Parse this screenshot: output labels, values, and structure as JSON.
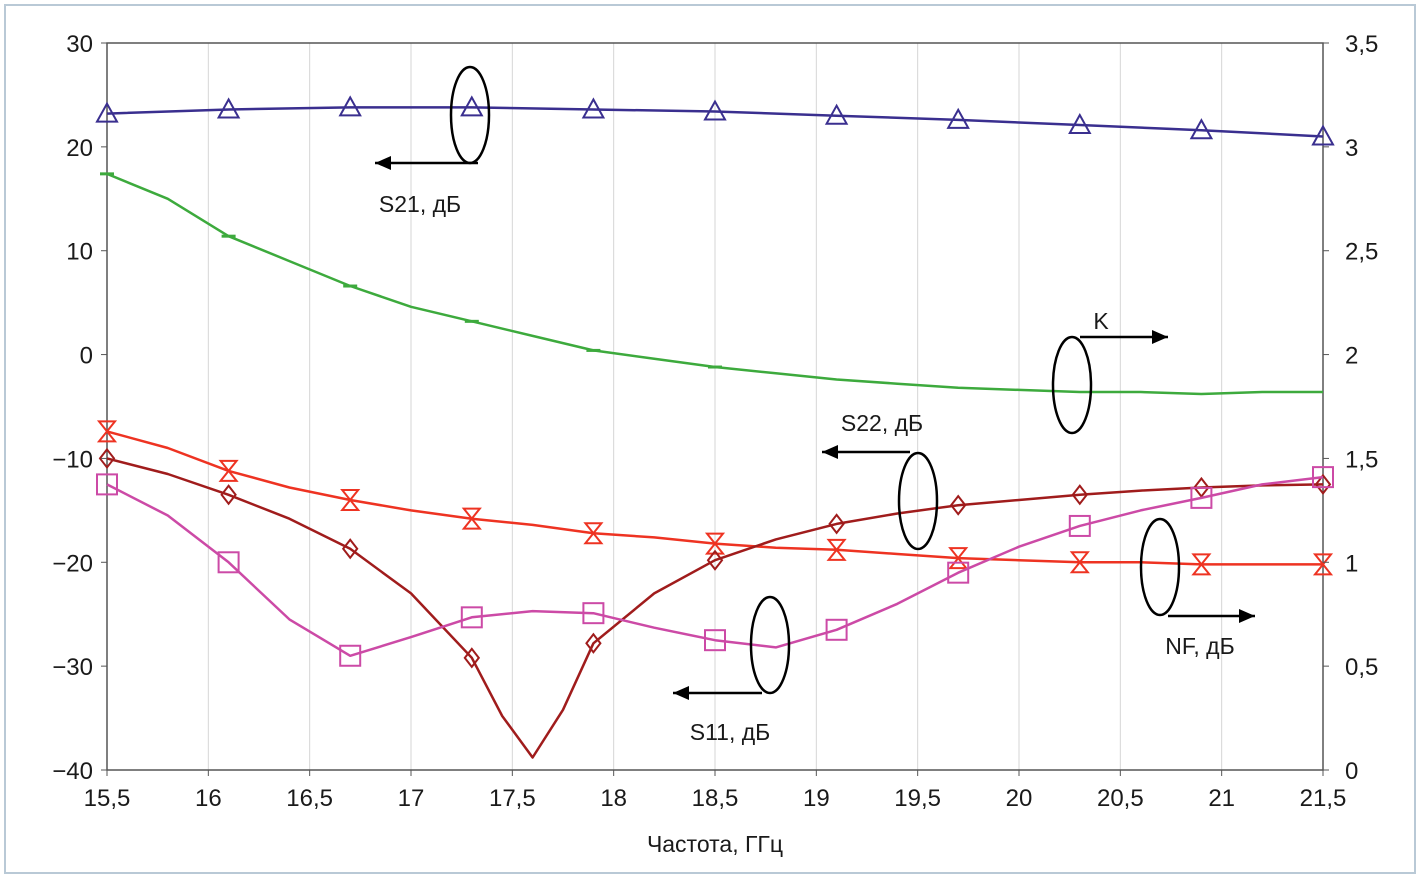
{
  "chart_data": {
    "type": "line",
    "xlabel": "Частота, ГГц",
    "x_ticks": [
      "15,5",
      "16",
      "16,5",
      "17",
      "17,5",
      "18",
      "18,5",
      "19",
      "19,5",
      "20",
      "20,5",
      "21",
      "21,5"
    ],
    "x_tick_values": [
      15.5,
      16,
      16.5,
      17,
      17.5,
      18,
      18.5,
      19,
      19.5,
      20,
      20.5,
      21,
      21.5
    ],
    "xlim": [
      15.5,
      21.5
    ],
    "y_left": {
      "ylim": [
        -40,
        30
      ],
      "ticks": [
        "30",
        "20",
        "10",
        "0",
        "−10",
        "−20",
        "−30",
        "−40"
      ],
      "tick_values": [
        30,
        20,
        10,
        0,
        -10,
        -20,
        -30,
        -40
      ]
    },
    "y_right": {
      "ylim": [
        0,
        3.5
      ],
      "ticks": [
        "3,5",
        "3",
        "2,5",
        "2",
        "1,5",
        "1",
        "0,5",
        "0"
      ],
      "tick_values": [
        3.5,
        3,
        2.5,
        2,
        1.5,
        1,
        0.5,
        0
      ]
    },
    "series": [
      {
        "name": "S21, дБ",
        "axis": "left",
        "color": "#3a2f8f",
        "marker": "triangle",
        "x": [
          15.5,
          16.1,
          16.7,
          17.3,
          17.9,
          18.5,
          19.1,
          19.7,
          20.3,
          20.9,
          21.5
        ],
        "y": [
          23.2,
          23.6,
          23.8,
          23.8,
          23.6,
          23.4,
          23.0,
          22.6,
          22.1,
          21.6,
          21.0
        ],
        "marker_x": [
          15.5,
          16.1,
          16.7,
          17.3,
          17.9,
          18.5,
          19.1,
          19.7,
          20.3,
          20.9,
          21.5
        ]
      },
      {
        "name": "K",
        "axis": "right",
        "color": "#3daa3d",
        "marker": "dash",
        "x": [
          15.5,
          15.8,
          16.1,
          16.4,
          16.7,
          17.0,
          17.3,
          17.6,
          17.9,
          18.2,
          18.5,
          18.8,
          19.1,
          19.4,
          19.7,
          20.0,
          20.3,
          20.6,
          20.9,
          21.2,
          21.5
        ],
        "y": [
          2.87,
          2.75,
          2.57,
          2.45,
          2.33,
          2.23,
          2.16,
          2.09,
          2.02,
          1.98,
          1.94,
          1.91,
          1.88,
          1.86,
          1.84,
          1.83,
          1.82,
          1.82,
          1.81,
          1.82,
          1.82
        ],
        "marker_x": [
          15.5,
          16.1,
          16.7,
          17.3,
          17.9,
          18.5
        ]
      },
      {
        "name": "NF, дБ",
        "axis": "right",
        "color": "#ee3322",
        "marker": "hourglass",
        "x": [
          15.5,
          15.8,
          16.1,
          16.4,
          16.7,
          17.0,
          17.3,
          17.6,
          17.9,
          18.2,
          18.5,
          18.8,
          19.1,
          19.4,
          19.7,
          20.0,
          20.3,
          20.6,
          20.9,
          21.2,
          21.5
        ],
        "y": [
          1.63,
          1.55,
          1.44,
          1.36,
          1.3,
          1.25,
          1.21,
          1.18,
          1.14,
          1.12,
          1.09,
          1.07,
          1.06,
          1.04,
          1.02,
          1.01,
          1.0,
          1.0,
          0.99,
          0.99,
          0.99
        ],
        "marker_x": [
          15.5,
          16.1,
          16.7,
          17.3,
          17.9,
          18.5,
          19.1,
          19.7,
          20.3,
          20.9,
          21.5
        ]
      },
      {
        "name": "S22, дБ",
        "axis": "left",
        "color": "#a01c1c",
        "marker": "diamond",
        "x": [
          15.5,
          15.8,
          16.1,
          16.4,
          16.7,
          17.0,
          17.3,
          17.45,
          17.6,
          17.75,
          17.9,
          18.2,
          18.5,
          18.8,
          19.1,
          19.4,
          19.7,
          20.0,
          20.3,
          20.6,
          20.9,
          21.2,
          21.5
        ],
        "y": [
          -10.0,
          -11.5,
          -13.5,
          -15.8,
          -18.7,
          -23.0,
          -29.2,
          -34.8,
          -38.8,
          -34.2,
          -27.8,
          -23.0,
          -19.8,
          -17.8,
          -16.3,
          -15.3,
          -14.5,
          -14.0,
          -13.5,
          -13.1,
          -12.8,
          -12.6,
          -12.5
        ],
        "marker_x": [
          15.5,
          16.1,
          16.7,
          17.3,
          17.9,
          18.5,
          19.1,
          19.7,
          20.3,
          20.9,
          21.5
        ],
        "marker_y": [
          -10.0,
          -13.5,
          -18.7,
          -29.2,
          -27.8,
          -19.8,
          -16.3,
          -14.5,
          -13.5,
          -12.8,
          -12.5
        ]
      },
      {
        "name": "S11, дБ",
        "axis": "left",
        "color": "#cc4aa6",
        "marker": "square",
        "x": [
          15.5,
          15.8,
          16.1,
          16.4,
          16.7,
          17.0,
          17.3,
          17.6,
          17.9,
          18.2,
          18.5,
          18.8,
          19.1,
          19.4,
          19.7,
          20.0,
          20.3,
          20.6,
          20.9,
          21.2,
          21.5
        ],
        "y": [
          -12.5,
          -15.5,
          -20.0,
          -25.5,
          -29.0,
          -27.2,
          -25.3,
          -24.7,
          -24.9,
          -26.3,
          -27.5,
          -28.2,
          -26.5,
          -24.0,
          -21.0,
          -18.5,
          -16.5,
          -15.0,
          -13.8,
          -12.5,
          -11.8
        ],
        "marker_x": [
          15.5,
          16.1,
          16.7,
          17.3,
          17.9,
          18.5,
          19.1,
          19.7,
          20.3,
          20.9,
          21.5
        ],
        "marker_y": [
          -12.5,
          -20.0,
          -29.0,
          -25.3,
          -24.9,
          -27.5,
          -26.5,
          -21.0,
          -16.5,
          -13.8,
          -11.8
        ]
      }
    ],
    "annotations": [
      {
        "key": "s21",
        "text": "S21, дБ"
      },
      {
        "key": "k",
        "text": "K"
      },
      {
        "key": "s22",
        "text": "S22, дБ"
      },
      {
        "key": "nf",
        "text": "NF, дБ"
      },
      {
        "key": "s11",
        "text": "S11, дБ"
      }
    ]
  }
}
